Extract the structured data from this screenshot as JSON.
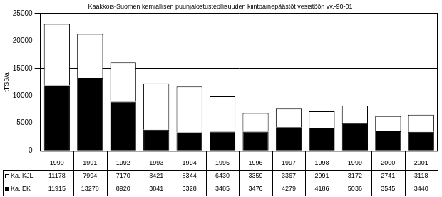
{
  "chart_data": {
    "type": "bar",
    "title": "Kaakkois-Suomen kemiallisen puunjalostusteollisuuden kiintoainepäästöt vesistöön vv.-90-01",
    "y_label": "tTSS/a",
    "categories": [
      "1990",
      "1991",
      "1992",
      "1993",
      "1994",
      "1995",
      "1996",
      "1997",
      "1998",
      "1999",
      "2000",
      "2001"
    ],
    "series": [
      {
        "name": "Ka. KJL",
        "color": "#ffffff",
        "values": [
          11178,
          7994,
          7170,
          8421,
          8344,
          6430,
          3359,
          3367,
          2991,
          3172,
          2741,
          3118
        ]
      },
      {
        "name": "Ka. EK",
        "color": "#000000",
        "values": [
          11915,
          13278,
          8920,
          3841,
          3328,
          3485,
          3476,
          4279,
          4186,
          5036,
          3545,
          3440
        ]
      }
    ],
    "stacked": true,
    "legend": "bottom",
    "ylim": [
      0,
      25000
    ],
    "yticks": [
      0,
      5000,
      10000,
      15000,
      20000,
      25000
    ],
    "grid": true
  }
}
